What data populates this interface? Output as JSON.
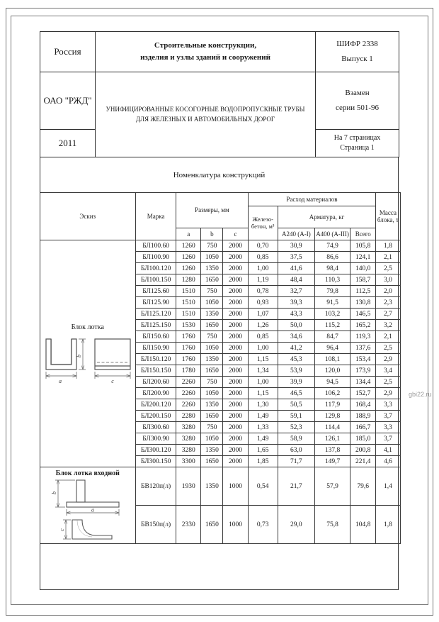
{
  "header_block": {
    "country": "Россия",
    "catalog_title": "Строительные конструкции,\nизделия и узлы зданий и сооружений",
    "code": "ШИФР 2338\nВыпуск 1",
    "org": "ОАО \"РЖД\"",
    "doc_title": "УНИФИЦИРОВАННЫЕ КОСОГОРНЫЕ ВОДОПРОПУСКНЫЕ ТРУБЫ ДЛЯ ЖЕЛЕЗНЫХ И АВТОМОБИЛЬНЫХ ДОРОГ",
    "replaces": "Взамен\nсерии 501-96",
    "year": "2011",
    "pages": "На 7 страницах\nСтраница 1"
  },
  "table": {
    "title": "Номенклатура конструкций",
    "headers": {
      "sketch": "Эскиз",
      "mark": "Марка",
      "dimensions": "Размеры, мм",
      "consumption": "Расход материалов",
      "concrete": "Железо-бетон, м³",
      "rebar": "Арматура, кг",
      "mass": "Масса блока, т",
      "dim_a": "a",
      "dim_b": "b",
      "dim_c": "c",
      "a240": "А240 (A-I)",
      "a400": "А400 (А-III)",
      "total": "Всего"
    },
    "dims": {
      "a": "a",
      "b": "b",
      "c": "c"
    },
    "groups": [
      {
        "sketch_label": "Блок лотка",
        "rows": [
          [
            "БЛ100.60",
            "1260",
            "750",
            "2000",
            "0,70",
            "30,9",
            "74,9",
            "105,8",
            "1,8"
          ],
          [
            "БЛ100.90",
            "1260",
            "1050",
            "2000",
            "0,85",
            "37,5",
            "86,6",
            "124,1",
            "2,1"
          ],
          [
            "БЛ100.120",
            "1260",
            "1350",
            "2000",
            "1,00",
            "41,6",
            "98,4",
            "140,0",
            "2,5"
          ],
          [
            "БЛ100.150",
            "1280",
            "1650",
            "2000",
            "1,19",
            "48,4",
            "110,3",
            "158,7",
            "3,0"
          ],
          [
            "БЛ125.60",
            "1510",
            "750",
            "2000",
            "0,78",
            "32,7",
            "79,8",
            "112,5",
            "2,0"
          ],
          [
            "БЛ125.90",
            "1510",
            "1050",
            "2000",
            "0,93",
            "39,3",
            "91,5",
            "130,8",
            "2,3"
          ],
          [
            "БЛ125.120",
            "1510",
            "1350",
            "2000",
            "1,07",
            "43,3",
            "103,2",
            "146,5",
            "2,7"
          ],
          [
            "БЛ125.150",
            "1530",
            "1650",
            "2000",
            "1,26",
            "50,0",
            "115,2",
            "165,2",
            "3,2"
          ],
          [
            "БЛ150.60",
            "1760",
            "750",
            "2000",
            "0,85",
            "34,6",
            "84,7",
            "119,3",
            "2,1"
          ],
          [
            "БЛ150.90",
            "1760",
            "1050",
            "2000",
            "1,00",
            "41,2",
            "96,4",
            "137,6",
            "2,5"
          ],
          [
            "БЛ150.120",
            "1760",
            "1350",
            "2000",
            "1,15",
            "45,3",
            "108,1",
            "153,4",
            "2,9"
          ],
          [
            "БЛ150.150",
            "1780",
            "1650",
            "2000",
            "1,34",
            "53,9",
            "120,0",
            "173,9",
            "3,4"
          ],
          [
            "БЛ200.60",
            "2260",
            "750",
            "2000",
            "1,00",
            "39,9",
            "94,5",
            "134,4",
            "2,5"
          ],
          [
            "БЛ200.90",
            "2260",
            "1050",
            "2000",
            "1,15",
            "46,5",
            "106,2",
            "152,7",
            "2,9"
          ],
          [
            "БЛ200.120",
            "2260",
            "1350",
            "2000",
            "1,30",
            "50,5",
            "117,9",
            "168,4",
            "3,3"
          ],
          [
            "БЛ200.150",
            "2280",
            "1650",
            "2000",
            "1,49",
            "59,1",
            "129,8",
            "188,9",
            "3,7"
          ],
          [
            "БЛ300.60",
            "3280",
            "750",
            "2000",
            "1,33",
            "52,3",
            "114,4",
            "166,7",
            "3,3"
          ],
          [
            "БЛ300.90",
            "3280",
            "1050",
            "2000",
            "1,49",
            "58,9",
            "126,1",
            "185,0",
            "3,7"
          ],
          [
            "БЛ300.120",
            "3280",
            "1350",
            "2000",
            "1,65",
            "63,0",
            "137,8",
            "200,8",
            "4,1"
          ],
          [
            "БЛ300.150",
            "3300",
            "1650",
            "2000",
            "1,85",
            "71,7",
            "149,7",
            "221,4",
            "4,6"
          ]
        ]
      },
      {
        "sketch_label": "Блок лотка входной",
        "rows": [
          [
            "БВ120п(л)",
            "1930",
            "1350",
            "1000",
            "0,54",
            "21,7",
            "57,9",
            "79,6",
            "1,4"
          ],
          [
            "БВ150п(л)",
            "2330",
            "1650",
            "1000",
            "0,73",
            "29,0",
            "75,8",
            "104,8",
            "1,8"
          ]
        ]
      }
    ]
  },
  "watermark": "gbi22.ru"
}
